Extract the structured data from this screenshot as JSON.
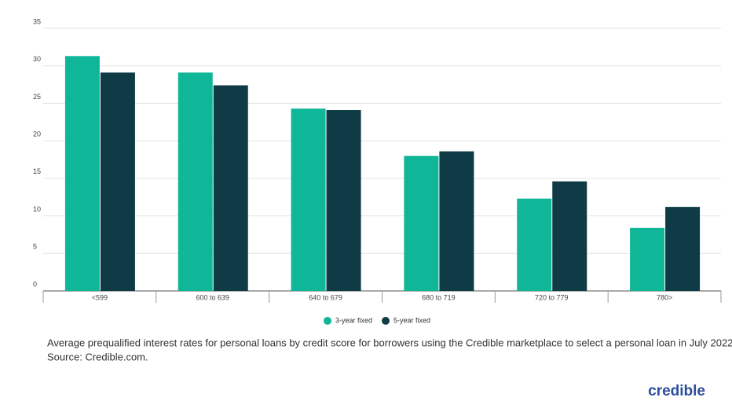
{
  "chart_data": {
    "type": "bar",
    "categories": [
      "<599",
      "600 to 639",
      "640 to 679",
      "680 to 719",
      "720 to 779",
      "780>"
    ],
    "series": [
      {
        "name": "3-year fixed",
        "color": "#0fb697",
        "values": [
          31.3,
          29.1,
          24.3,
          18.0,
          12.3,
          8.4
        ]
      },
      {
        "name": "5-year fixed",
        "color": "#0e3b46",
        "values": [
          29.1,
          27.4,
          24.1,
          18.6,
          14.6,
          11.2
        ]
      }
    ],
    "ylim": [
      0,
      35
    ],
    "yticks": [
      0,
      5,
      10,
      15,
      20,
      25,
      30,
      35
    ],
    "grid": true,
    "legend": "bottom",
    "caption": [
      "Average prequalified interest rates for personal loans by credit score for borrowers using the Credible marketplace to select a personal loan in July 2022.",
      "Source: Credible.com."
    ],
    "brand": "credible"
  }
}
